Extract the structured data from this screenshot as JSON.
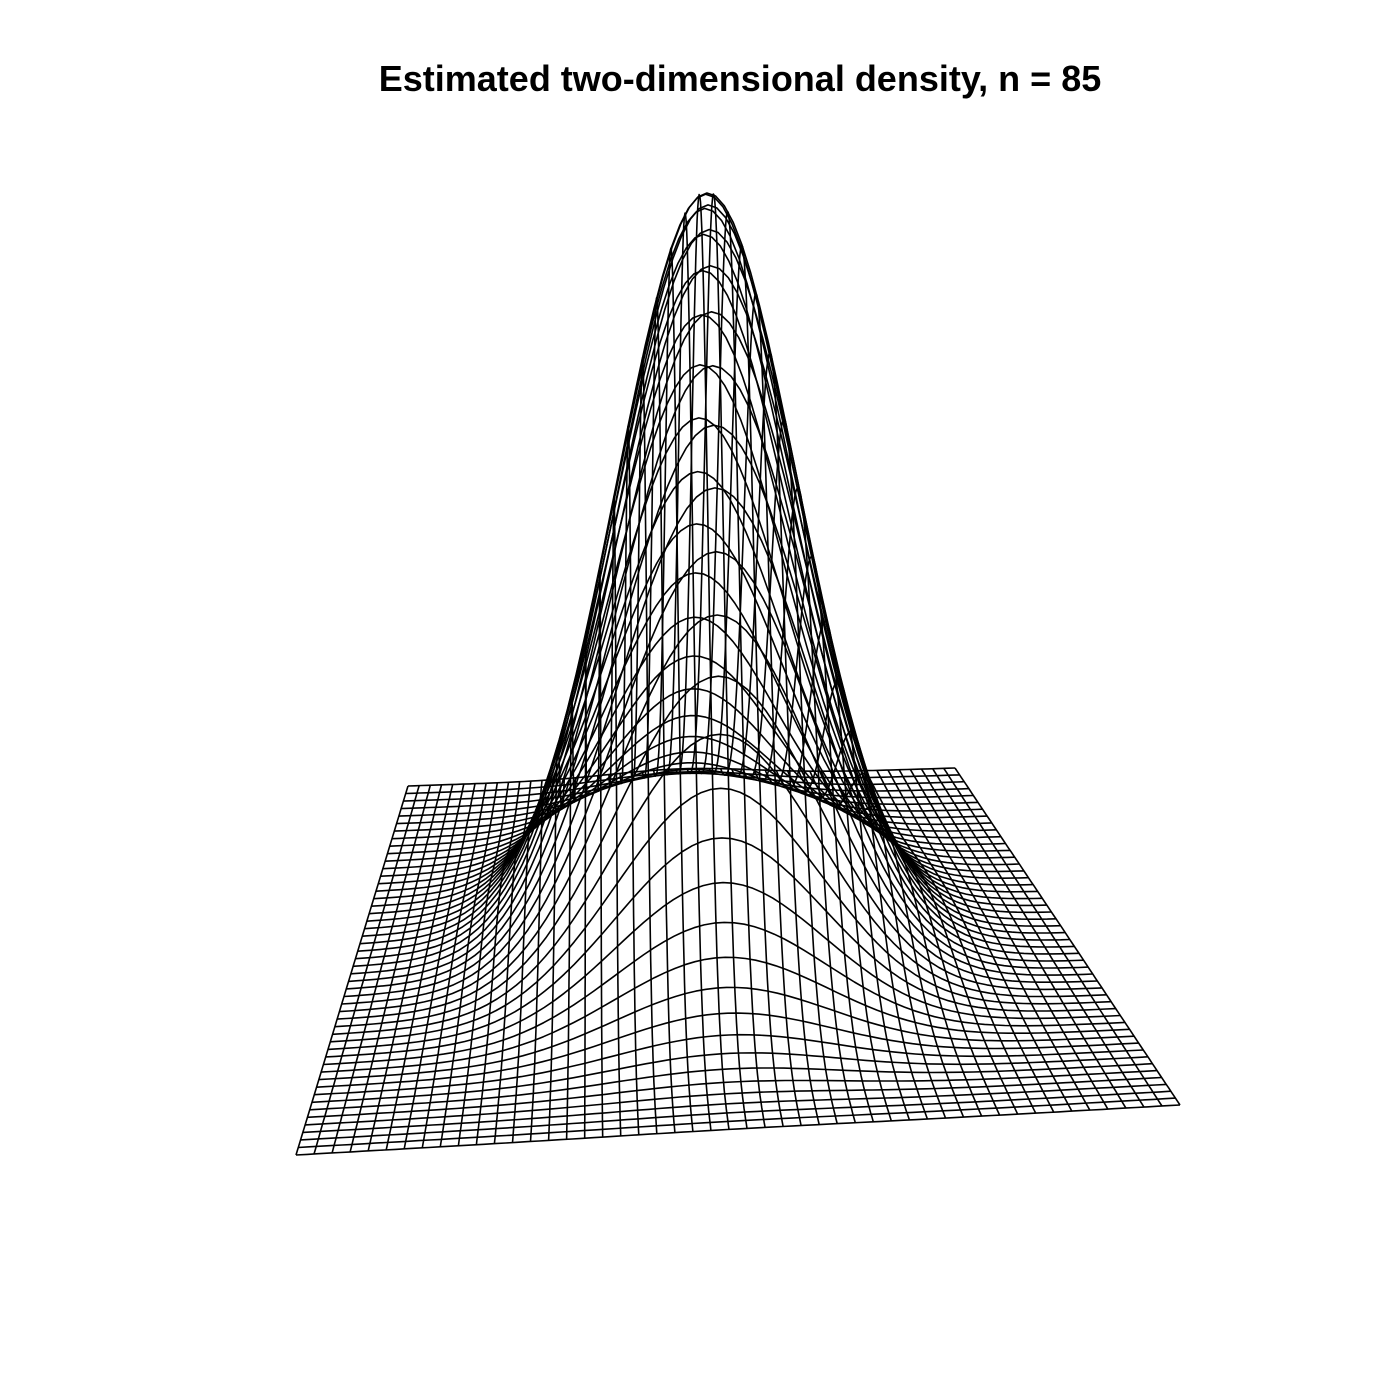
{
  "chart_data": {
    "type": "surface",
    "title": "Estimated two-dimensional density, n = 85",
    "grid_size": 50,
    "surface": {
      "mesh": "wireframe",
      "line_color": "#000000",
      "background": "#ffffff",
      "peak_count": 1
    }
  }
}
